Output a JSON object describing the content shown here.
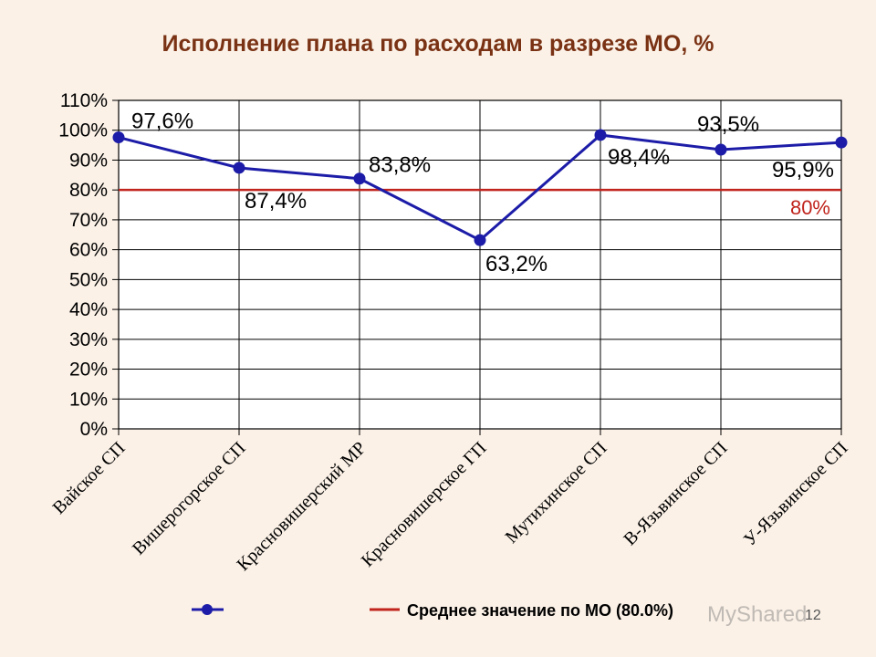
{
  "colors": {
    "background": "#fbf1e7",
    "plot_area": "#ffffff",
    "title": "#7a3214",
    "series": "#1c1ca8",
    "reference": "#c0241c"
  },
  "watermark": "MyShared",
  "page_number": "12",
  "chart_data": {
    "type": "line",
    "title": "Исполнение плана по расходам в разрезе МО, %",
    "xlabel": "",
    "ylabel": "",
    "ylim": [
      0,
      110
    ],
    "ytick_step": 10,
    "ytick_format": "{v}%",
    "grid": "vertical lines at categories",
    "legend_position": "bottom",
    "categories": [
      "Вайское СП",
      "Вишерогорское СП",
      "Красновишерский МР",
      "Красновишерское ГП",
      "Мутихинское СП",
      "В-Язьвинское СП",
      "У-Язьвинское СП"
    ],
    "series": [
      {
        "name": "",
        "values": [
          97.6,
          87.4,
          83.8,
          63.2,
          98.4,
          93.5,
          95.9
        ],
        "labels": [
          "97,6%",
          "87,4%",
          "83,8%",
          "63,2%",
          "98,4%",
          "93,5%",
          "95,9%"
        ]
      }
    ],
    "reference_line": {
      "value": 80,
      "label": "80%",
      "legend": "Среднее значение по МО (80.0%)"
    }
  }
}
